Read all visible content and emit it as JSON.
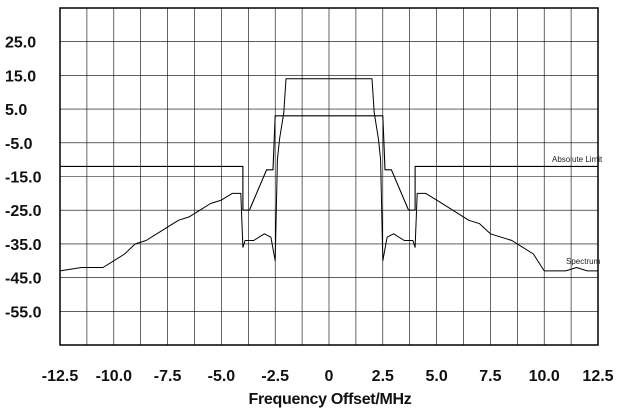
{
  "chart_data": {
    "type": "line",
    "xlabel": "Frequency Offset/MHz",
    "ylabel": "",
    "xlim": [
      -12.5,
      12.5
    ],
    "ylim": [
      -65,
      35
    ],
    "grid": true,
    "x_ticks": [
      -12.5,
      -10.0,
      -7.5,
      -5.0,
      -2.5,
      0,
      2.5,
      5.0,
      7.5,
      10.0,
      12.5
    ],
    "x_tick_labels": [
      "-12.5",
      "-10.0",
      "-7.5",
      "-5.0",
      "-2.5",
      "0",
      "2.5",
      "5.0",
      "7.5",
      "10.0",
      "12.5"
    ],
    "y_ticks": [
      25,
      15,
      5,
      -5,
      -15,
      -25,
      -35,
      -45,
      -55
    ],
    "y_tick_labels": [
      "25.0",
      "15.0",
      "5.0",
      "-5.0",
      "-15.0",
      "-25.0",
      "-35.0",
      "-45.0",
      "-55.0"
    ],
    "series": [
      {
        "name": "Absolute Limit",
        "x": [
          -12.5,
          -4.0,
          -4.0,
          -3.7,
          -2.9,
          -2.6,
          -2.5,
          2.5,
          2.6,
          2.9,
          3.7,
          4.0,
          4.0,
          12.5
        ],
        "y": [
          -12,
          -12,
          -25,
          -25,
          -13,
          -13,
          3,
          3,
          -13,
          -13,
          -25,
          -25,
          -12,
          -12
        ]
      },
      {
        "name": "Spectrum",
        "x": [
          -12.5,
          -11.5,
          -10.5,
          -10.0,
          -9.5,
          -9.0,
          -8.5,
          -8.0,
          -7.5,
          -7.0,
          -6.5,
          -6.0,
          -5.5,
          -5.0,
          -4.5,
          -4.1,
          -4.0,
          -3.9,
          -3.5,
          -3.0,
          -2.7,
          -2.5,
          -2.4,
          -2.3,
          -2.1,
          -2.0,
          2.0,
          2.1,
          2.3,
          2.4,
          2.5,
          2.7,
          3.0,
          3.5,
          3.9,
          4.0,
          4.1,
          4.5,
          5.0,
          5.5,
          6.0,
          6.5,
          7.0,
          7.5,
          8.0,
          8.5,
          9.0,
          9.5,
          10.0,
          10.5,
          11.0,
          11.5,
          12.0,
          12.5
        ],
        "y": [
          -43,
          -42,
          -42,
          -40,
          -38,
          -35,
          -34,
          -32,
          -30,
          -28,
          -27,
          -25,
          -23,
          -22,
          -20,
          -20,
          -36,
          -34,
          -34,
          -32,
          -33,
          -40,
          -10,
          -4,
          4,
          14,
          14,
          4,
          -4,
          -10,
          -40,
          -33,
          -32,
          -34,
          -34,
          -36,
          -20,
          -20,
          -22,
          -24,
          -26,
          -28,
          -29,
          -32,
          -33,
          -34,
          -36,
          -38,
          -43,
          -43,
          -43,
          -42,
          -43,
          -43
        ]
      }
    ],
    "annotations": [
      "Absolute Limit",
      "Spectrum"
    ]
  }
}
